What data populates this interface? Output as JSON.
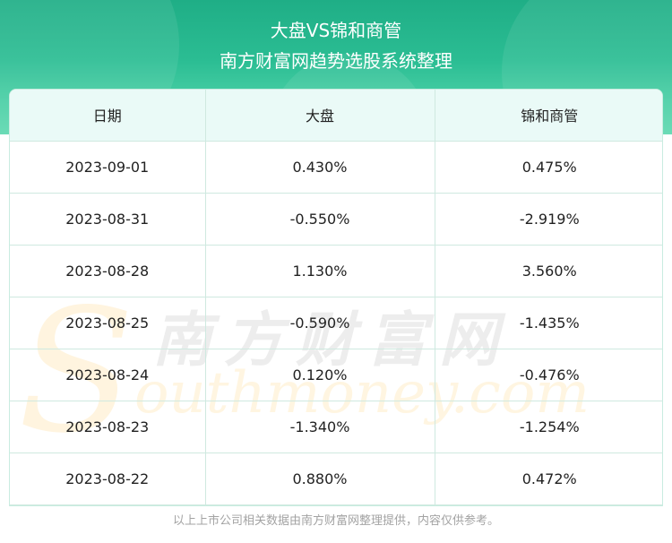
{
  "header": {
    "title": "大盘VS锦和商管",
    "subtitle": "南方财富网趋势选股系统整理"
  },
  "table": {
    "columns": [
      "日期",
      "大盘",
      "锦和商管"
    ],
    "rows": [
      [
        "2023-09-01",
        "0.430%",
        "0.475%"
      ],
      [
        "2023-08-31",
        "-0.550%",
        "-2.919%"
      ],
      [
        "2023-08-28",
        "1.130%",
        "3.560%"
      ],
      [
        "2023-08-25",
        "-0.590%",
        "-1.435%"
      ],
      [
        "2023-08-24",
        "0.120%",
        "-0.476%"
      ],
      [
        "2023-08-23",
        "-1.340%",
        "-1.254%"
      ],
      [
        "2023-08-22",
        "0.880%",
        "0.472%"
      ]
    ]
  },
  "watermark": {
    "cn": "南方财富网",
    "en": "outhmoney.com",
    "s": "S"
  },
  "footer": "以上上市公司相关数据由南方财富网整理提供，内容仅供参考。"
}
